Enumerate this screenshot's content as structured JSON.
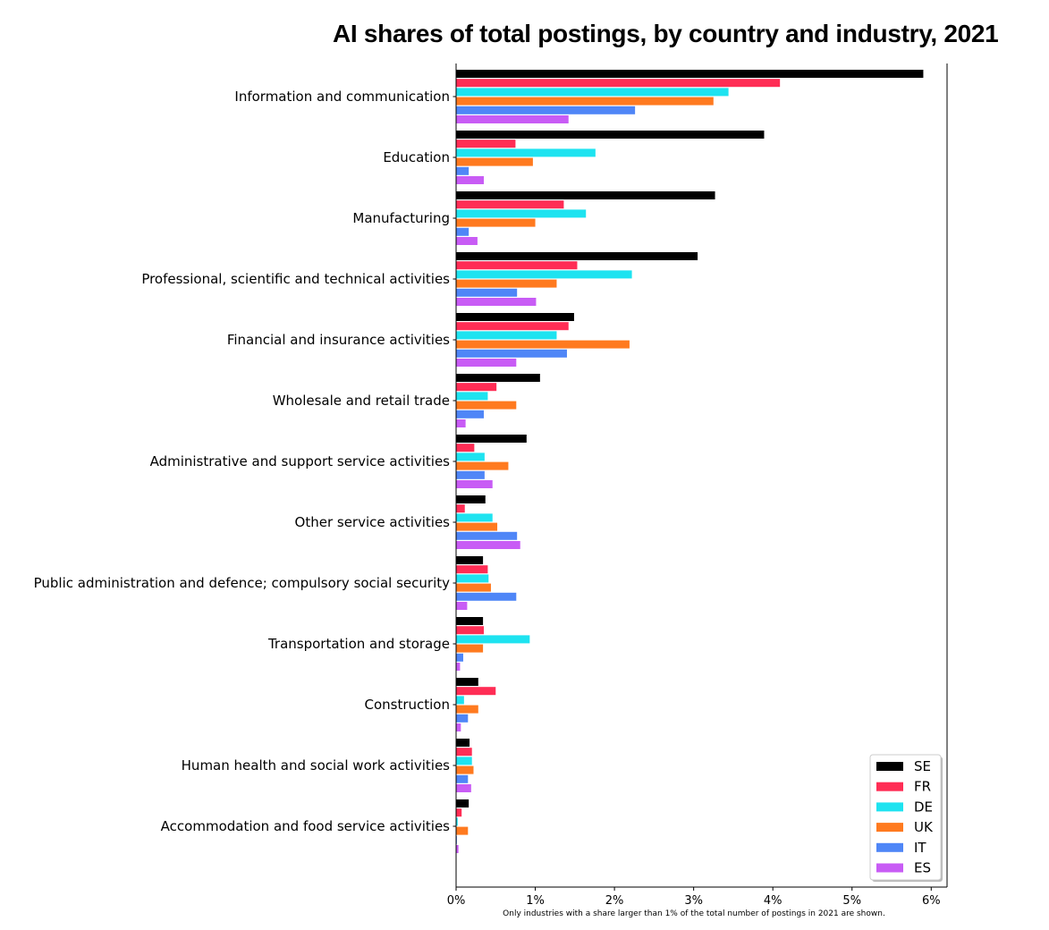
{
  "chart_data": {
    "type": "bar",
    "orientation": "horizontal",
    "title": "AI shares of total postings, by country and industry, 2021",
    "footnote": "Only industries with a share larger than 1% of the total number of postings in 2021 are shown.",
    "categories": [
      "Information and communication",
      "Education",
      "Manufacturing",
      "Professional, scientific and technical activities",
      "Financial and insurance activities",
      "Wholesale and retail trade",
      "Administrative and support service activities",
      "Other service activities",
      "Public administration and defence; compulsory social security",
      "Transportation and storage",
      "Construction",
      "Human health and social work activities",
      "Accommodation and food service activities"
    ],
    "series": [
      {
        "name": "SE",
        "color": "#000000",
        "values": [
          5.9,
          3.89,
          3.27,
          3.05,
          1.49,
          1.06,
          0.89,
          0.37,
          0.34,
          0.34,
          0.28,
          0.17,
          0.16
        ]
      },
      {
        "name": "FR",
        "color": "#ff2d55",
        "values": [
          4.09,
          0.75,
          1.36,
          1.53,
          1.42,
          0.51,
          0.23,
          0.11,
          0.4,
          0.35,
          0.5,
          0.2,
          0.07
        ]
      },
      {
        "name": "DE",
        "color": "#1ee3f0",
        "values": [
          3.44,
          1.76,
          1.64,
          2.22,
          1.27,
          0.4,
          0.36,
          0.46,
          0.41,
          0.93,
          0.1,
          0.2,
          0.02
        ]
      },
      {
        "name": "UK",
        "color": "#ff7a1f",
        "values": [
          3.25,
          0.97,
          1.0,
          1.27,
          2.19,
          0.76,
          0.66,
          0.52,
          0.44,
          0.34,
          0.28,
          0.22,
          0.15
        ]
      },
      {
        "name": "IT",
        "color": "#4f86f7",
        "values": [
          2.26,
          0.16,
          0.16,
          0.77,
          1.4,
          0.35,
          0.36,
          0.77,
          0.76,
          0.09,
          0.15,
          0.15,
          0.01
        ]
      },
      {
        "name": "ES",
        "color": "#c85cf5",
        "values": [
          1.42,
          0.35,
          0.27,
          1.01,
          0.76,
          0.12,
          0.46,
          0.81,
          0.14,
          0.05,
          0.06,
          0.19,
          0.03
        ]
      }
    ],
    "xlim": [
      0,
      6.2
    ],
    "xticks": [
      0,
      1,
      2,
      3,
      4,
      5,
      6
    ],
    "xtick_labels": [
      "0%",
      "1%",
      "2%",
      "3%",
      "4%",
      "5%",
      "6%"
    ],
    "legend_position": "bottom-right",
    "grid": false
  }
}
